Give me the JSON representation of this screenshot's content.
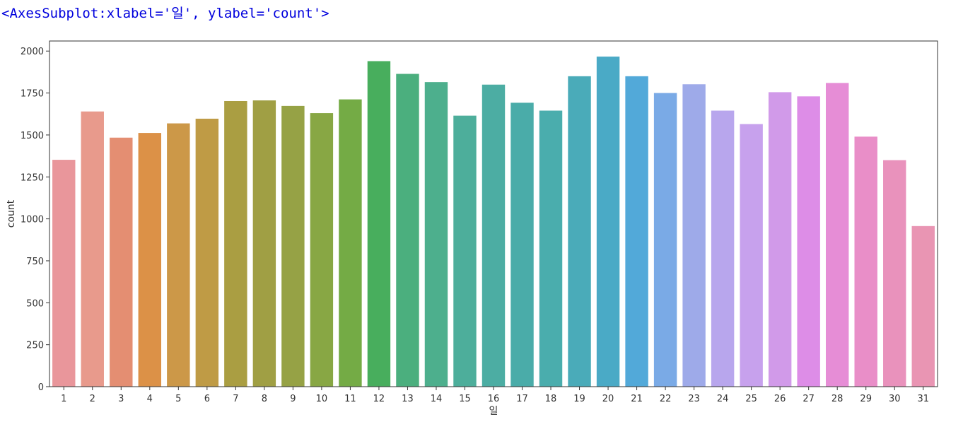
{
  "output_repr": "<AxesSubplot:xlabel='일', ylabel='count'>",
  "chart_data": {
    "type": "bar",
    "xlabel": "일",
    "ylabel": "count",
    "ylim": [
      0,
      2060
    ],
    "yticks": [
      0,
      250,
      500,
      750,
      1000,
      1250,
      1500,
      1750,
      2000
    ],
    "grid": false,
    "legend": "none",
    "categories": [
      "1",
      "2",
      "3",
      "4",
      "5",
      "6",
      "7",
      "8",
      "9",
      "10",
      "11",
      "12",
      "13",
      "14",
      "15",
      "16",
      "17",
      "18",
      "19",
      "20",
      "21",
      "22",
      "23",
      "24",
      "25",
      "26",
      "27",
      "28",
      "29",
      "30",
      "31"
    ],
    "values": [
      1352,
      1640,
      1484,
      1512,
      1569,
      1597,
      1702,
      1706,
      1673,
      1630,
      1712,
      1940,
      1864,
      1815,
      1615,
      1800,
      1692,
      1645,
      1850,
      1967,
      1850,
      1750,
      1802,
      1645,
      1565,
      1755,
      1730,
      1810,
      1490,
      1350,
      957
    ],
    "colors": [
      "#e9969b",
      "#e89a8c",
      "#e48e72",
      "#dc9147",
      "#cc9848",
      "#bf9b45",
      "#aa9e42",
      "#a09f44",
      "#96a245",
      "#88a744",
      "#74ab45",
      "#48ae5d",
      "#4baf7e",
      "#4daf8d",
      "#4dae9b",
      "#4cada3",
      "#4aaca9",
      "#4aadad",
      "#4aabb9",
      "#4aaac6",
      "#52a9d9",
      "#7aaae6",
      "#9eaae9",
      "#b8a6ed",
      "#c7a1ed",
      "#d19ae9",
      "#dd8de7",
      "#e68dd6",
      "#e98ec8",
      "#e992bc",
      "#e995b3"
    ]
  }
}
